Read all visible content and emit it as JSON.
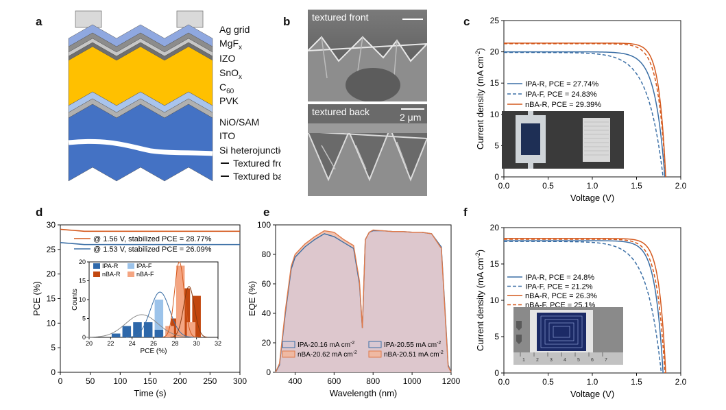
{
  "panel_labels": {
    "a": "a",
    "b": "b",
    "c": "c",
    "d": "d",
    "e": "e",
    "f": "f"
  },
  "panel_a": {
    "layers": [
      "Ag grid",
      "MgF",
      "IZO",
      "SnO",
      "C",
      "PVK",
      "NiO/SAM",
      "ITO",
      "Si heterojunction"
    ],
    "mgf_sub": "x",
    "sno_sub": "x",
    "c_sub": "60",
    "legend_front": "Textured front",
    "legend_back": "Textured back",
    "colors": {
      "ag": "#d9d9d9",
      "mgf": "#8fa8e0",
      "izo": "#8c8c8c",
      "sno": "#c6c6c6",
      "c60": "#6f6f6f",
      "pvk": "#ffc000",
      "nio": "#a9c4ec",
      "ito": "#b0b0b0",
      "si": "#4472c4"
    }
  },
  "panel_b": {
    "front_label": "textured front",
    "back_label": "textured back",
    "scale_label": "2 μm"
  },
  "chart_data": [
    {
      "id": "c",
      "type": "line",
      "xlabel": "Voltage (V)",
      "ylabel": "Current density (mA cm",
      "ylabel_sup": "-2",
      "ylabel_close": ")",
      "xlim": [
        0,
        2.0
      ],
      "ylim": [
        0,
        25
      ],
      "xticks": [
        "0.0",
        "0.5",
        "1.0",
        "1.5",
        "2.0"
      ],
      "yticks": [
        "0",
        "5",
        "10",
        "15",
        "20",
        "25"
      ],
      "legend": [
        "IPA-R,  PCE = 27.74%",
        "IPA-F,  PCE = 24.83%",
        "nBA-R,  PCE = 29.39%",
        "nBA-F,  PCE = 28.08%"
      ],
      "series": [
        {
          "name": "IPA-R",
          "jsc": 20.0,
          "voc": 1.82,
          "n": 0.11,
          "color": "#3a6ea5",
          "dash": false
        },
        {
          "name": "IPA-F",
          "jsc": 19.9,
          "voc": 1.8,
          "n": 0.17,
          "color": "#3a6ea5",
          "dash": true
        },
        {
          "name": "nBA-R",
          "jsc": 21.4,
          "voc": 1.83,
          "n": 0.075,
          "color": "#d4581c",
          "dash": false
        },
        {
          "name": "nBA-F",
          "jsc": 21.3,
          "voc": 1.83,
          "n": 0.09,
          "color": "#d4581c",
          "dash": true
        }
      ]
    },
    {
      "id": "d",
      "type": "line",
      "xlabel": "Time (s)",
      "ylabel": "PCE (%)",
      "xlim": [
        0,
        300
      ],
      "ylim": [
        0,
        30
      ],
      "xticks": [
        "0",
        "50",
        "100",
        "150",
        "200",
        "250",
        "300"
      ],
      "yticks": [
        "0",
        "5",
        "10",
        "15",
        "20",
        "25",
        "30"
      ],
      "legend": [
        "@ 1.56 V, stabilized PCE = 28.77%",
        "@ 1.53 V, stabilized PCE = 26.09%"
      ],
      "series": [
        {
          "name": "@ 1.56 V",
          "start": 29.1,
          "end": 28.7,
          "color": "#d4581c"
        },
        {
          "name": "@ 1.53 V",
          "start": 26.4,
          "end": 26.0,
          "color": "#3a6ea5"
        }
      ],
      "inset": {
        "type": "bar",
        "xlabel": "PCE (%)",
        "ylabel": "Counts",
        "xlim": [
          20,
          32
        ],
        "ylim": [
          0,
          20
        ],
        "xticks": [
          "20",
          "22",
          "24",
          "26",
          "28",
          "30",
          "32"
        ],
        "yticks": [
          "0",
          "5",
          "10",
          "15",
          "20"
        ],
        "legend": [
          "IPA-R",
          "IPA-F",
          "nBA-R",
          "nBA-F"
        ],
        "colors": [
          "#2e68aa",
          "#9cc3ea",
          "#c2470f",
          "#f4a582"
        ],
        "bars": [
          {
            "s": 1,
            "x": [
              23.5,
              24.5,
              25.5,
              26.5,
              27.5
            ],
            "v": [
              1,
              2,
              2,
              10,
              2
            ]
          },
          {
            "s": 0,
            "x": [
              22.5,
              23.5,
              24.5,
              25.5,
              26.5
            ],
            "v": [
              1,
              3,
              4,
              4,
              2
            ]
          },
          {
            "s": 2,
            "x": [
              28.0,
              29.0,
              30.0
            ],
            "v": [
              5,
              13,
              11
            ]
          },
          {
            "s": 3,
            "x": [
              27.5,
              28.5,
              29.5
            ],
            "v": [
              3,
              19,
              4
            ]
          }
        ],
        "fits": [
          {
            "mu": 24.9,
            "sigma": 1.5,
            "amp": 6,
            "color": "#8a8a8a"
          },
          {
            "mu": 26.6,
            "sigma": 0.9,
            "amp": 12,
            "color": "#3a6ea5"
          },
          {
            "mu": 28.4,
            "sigma": 0.45,
            "amp": 20,
            "color": "#d4581c"
          },
          {
            "mu": 29.3,
            "sigma": 0.5,
            "amp": 13.5,
            "color": "#8a3a10"
          }
        ]
      }
    },
    {
      "id": "e",
      "type": "area",
      "xlabel": "Wavelength (nm)",
      "ylabel": "EQE (%)",
      "xlim": [
        300,
        1200
      ],
      "ylim": [
        0,
        100
      ],
      "xticks": [
        "400",
        "600",
        "800",
        "1000",
        "1200"
      ],
      "yticks": [
        "0",
        "20",
        "40",
        "60",
        "80",
        "100"
      ],
      "legend_left": [
        "IPA-20.16  mA cm",
        "nBA-20.62 mA cm"
      ],
      "legend_right": [
        "IPA-20.55  mA cm",
        "nBA-20.51 mA cm"
      ],
      "legend_sup": "-2",
      "series": [
        {
          "name": "IPA",
          "color": "#3a6ea5",
          "fill": "#d9c8d2",
          "x": [
            300,
            320,
            350,
            380,
            400,
            450,
            500,
            550,
            600,
            650,
            700,
            730,
            745,
            760,
            780,
            800,
            850,
            900,
            950,
            1000,
            1050,
            1100,
            1150,
            1170,
            1185,
            1200
          ],
          "y": [
            0,
            5,
            40,
            70,
            78,
            85,
            90,
            94,
            92,
            88,
            84,
            60,
            30,
            90,
            95,
            96,
            96,
            95.5,
            95.5,
            95,
            95,
            94,
            85,
            40,
            5,
            0
          ]
        },
        {
          "name": "nBA",
          "color": "#e07a4a",
          "fill": "#efb9a3",
          "x": [
            300,
            320,
            350,
            380,
            400,
            450,
            500,
            550,
            600,
            650,
            700,
            730,
            745,
            760,
            780,
            800,
            850,
            900,
            950,
            1000,
            1050,
            1100,
            1150,
            1170,
            1185,
            1200
          ],
          "y": [
            0,
            6,
            42,
            72,
            80,
            87,
            92,
            96,
            95,
            90,
            86,
            62,
            30,
            90,
            95,
            96.5,
            96,
            95.5,
            95.5,
            95,
            95,
            94,
            84,
            38,
            4,
            0
          ]
        }
      ]
    },
    {
      "id": "f",
      "type": "line",
      "xlabel": "Voltage (V)",
      "ylabel": "Current density (mA cm",
      "ylabel_sup": "-2",
      "ylabel_close": ")",
      "xlim": [
        0,
        2.0
      ],
      "ylim": [
        0,
        20
      ],
      "xticks": [
        "0.0",
        "0.5",
        "1.0",
        "1.5",
        "2.0"
      ],
      "yticks": [
        "0",
        "5",
        "10",
        "15",
        "20"
      ],
      "legend": [
        "IPA-R, PCE = 24.8%",
        "IPA-F, PCE = 21.2%",
        "nBA-R, PCE = 26.3%",
        "nBA-F, PCE = 25.1%"
      ],
      "series": [
        {
          "name": "IPA-R",
          "jsc": 18.2,
          "voc": 1.8,
          "n": 0.09,
          "color": "#3a6ea5",
          "dash": false
        },
        {
          "name": "IPA-F",
          "jsc": 18.1,
          "voc": 1.78,
          "n": 0.16,
          "color": "#3a6ea5",
          "dash": true
        },
        {
          "name": "nBA-R",
          "jsc": 18.5,
          "voc": 1.83,
          "n": 0.075,
          "color": "#d4581c",
          "dash": false
        },
        {
          "name": "nBA-F",
          "jsc": 18.4,
          "voc": 1.82,
          "n": 0.09,
          "color": "#d4581c",
          "dash": true
        }
      ],
      "ruler_labels": [
        "1",
        "2",
        "3",
        "4",
        "5",
        "6",
        "7"
      ]
    }
  ]
}
